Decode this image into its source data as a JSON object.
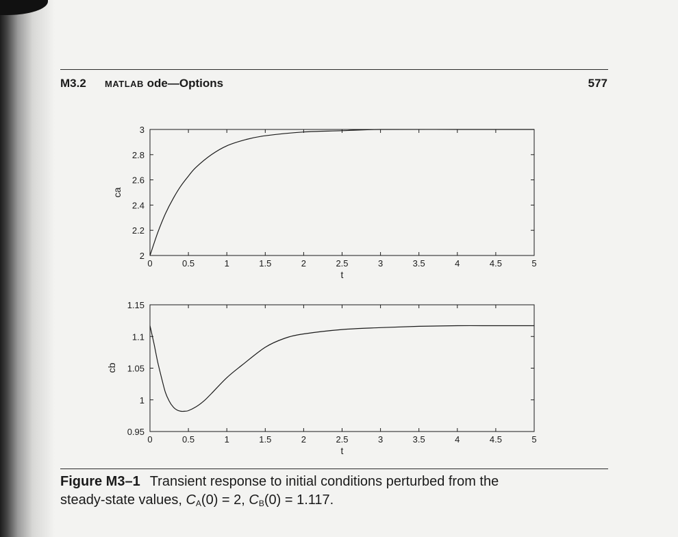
{
  "header": {
    "section_number": "M3.2",
    "section_title_prefix": "Matlab",
    "section_title_rest": " ode—Options",
    "page_number": "577"
  },
  "chart_data": [
    {
      "type": "line",
      "xlabel": "t",
      "ylabel": "ca",
      "xlim": [
        0,
        5
      ],
      "ylim": [
        2,
        3
      ],
      "xticks": [
        0,
        0.5,
        1,
        1.5,
        2,
        2.5,
        3,
        3.5,
        4,
        4.5,
        5
      ],
      "yticks": [
        2,
        2.2,
        2.4,
        2.6,
        2.8,
        3
      ],
      "series": [
        {
          "x": [
            0,
            0.1,
            0.2,
            0.3,
            0.4,
            0.5,
            0.6,
            0.8,
            1.0,
            1.25,
            1.5,
            2.0,
            2.5,
            3.0,
            4.0,
            5.0
          ],
          "values": [
            2.0,
            2.18,
            2.33,
            2.45,
            2.55,
            2.63,
            2.7,
            2.8,
            2.87,
            2.92,
            2.95,
            2.98,
            2.99,
            3.0,
            3.0,
            3.0
          ]
        }
      ]
    },
    {
      "type": "line",
      "xlabel": "t",
      "ylabel": "cb",
      "xlim": [
        0,
        5
      ],
      "ylim": [
        0.95,
        1.15
      ],
      "xticks": [
        0,
        0.5,
        1,
        1.5,
        2,
        2.5,
        3,
        3.5,
        4,
        4.5,
        5
      ],
      "yticks": [
        0.95,
        1,
        1.05,
        1.1,
        1.15
      ],
      "series": [
        {
          "x": [
            0,
            0.05,
            0.1,
            0.15,
            0.2,
            0.25,
            0.3,
            0.35,
            0.4,
            0.45,
            0.5,
            0.6,
            0.7,
            0.8,
            1.0,
            1.2,
            1.5,
            1.75,
            2.0,
            2.5,
            3.0,
            3.5,
            4.0,
            4.5,
            5.0
          ],
          "values": [
            1.117,
            1.09,
            1.06,
            1.035,
            1.012,
            0.998,
            0.989,
            0.984,
            0.982,
            0.982,
            0.983,
            0.989,
            0.998,
            1.01,
            1.035,
            1.055,
            1.083,
            1.097,
            1.104,
            1.111,
            1.114,
            1.116,
            1.117,
            1.117,
            1.117
          ]
        }
      ]
    }
  ],
  "caption": {
    "label": "Figure M3–1",
    "line1": "Transient response to initial conditions perturbed from the",
    "line2_prefix": "steady-state values, ",
    "ca_sym": "C",
    "ca_sub": "A",
    "ca_val": "(0) = 2, ",
    "cb_sym": "C",
    "cb_sub": "B",
    "cb_val": "(0) = 1.117."
  }
}
